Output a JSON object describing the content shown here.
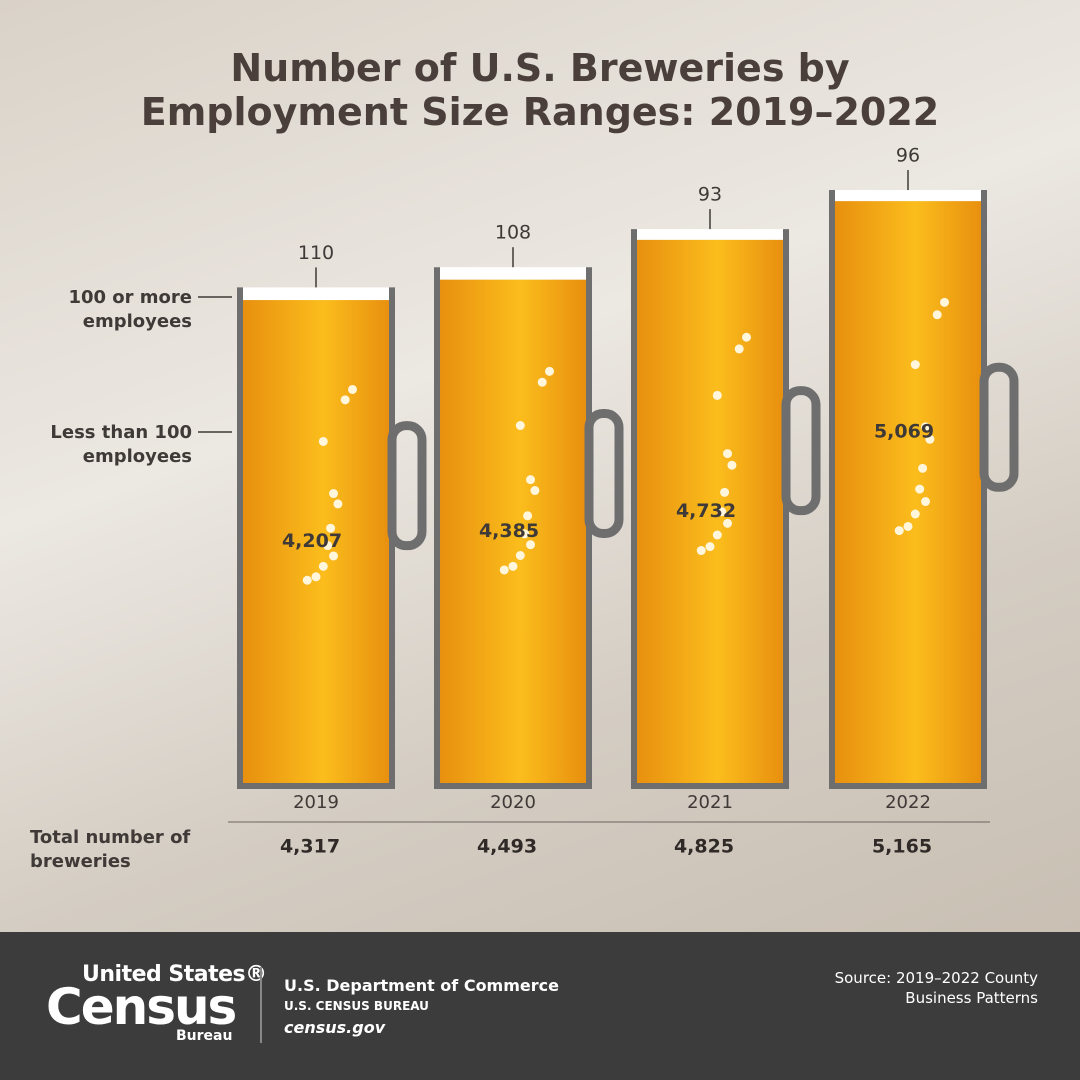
{
  "chart_data": {
    "type": "bar",
    "stacked": true,
    "title": "Number of U.S. Breweries by Employment Size Ranges: 2019–2022",
    "categories": [
      "2019",
      "2020",
      "2021",
      "2022"
    ],
    "series": [
      {
        "name": "Less than 100 employees",
        "color": "#f4a81c",
        "values": [
          4207,
          4385,
          4732,
          5069
        ],
        "value_labels": [
          "4,207",
          "4,385",
          "4,732",
          "5,069"
        ]
      },
      {
        "name": "100 or more employees",
        "color": "#ffffff",
        "values": [
          110,
          108,
          93,
          96
        ]
      }
    ],
    "totals_label": "Total number of breweries",
    "totals": [
      4317,
      4493,
      4825,
      5165
    ],
    "total_labels": [
      "4,317",
      "4,493",
      "4,825",
      "5,165"
    ]
  },
  "footer": {
    "logo_top": "United States®",
    "logo_main": "Census",
    "logo_bottom": "Bureau",
    "department": "U.S. Department of Commerce",
    "bureau": "U.S. CENSUS BUREAU",
    "website": "census.gov",
    "source": "Source: 2019–2022 County Business Patterns"
  }
}
